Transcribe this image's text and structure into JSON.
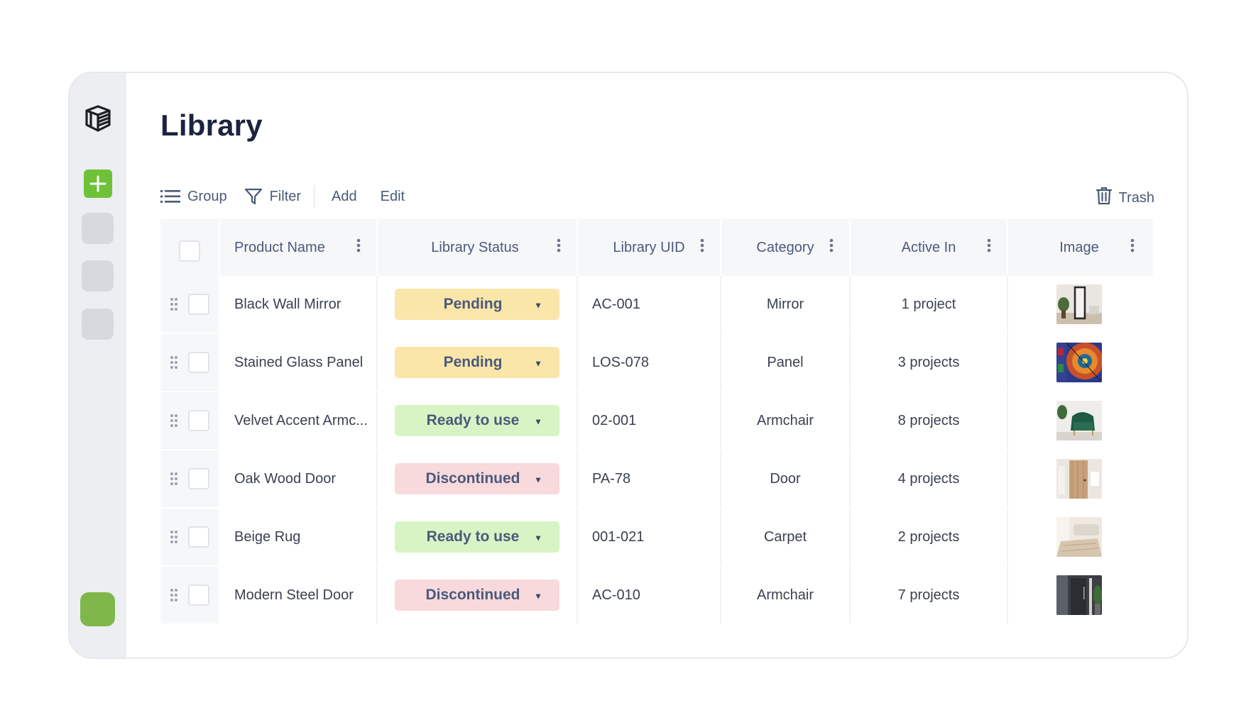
{
  "page": {
    "title": "Library"
  },
  "sidebar": {
    "logo_icon": "stacked-cube-icon",
    "add_icon": "plus-icon",
    "accent": "#6fc237",
    "avatar_color": "#7fb74a"
  },
  "toolbar": {
    "group_label": "Group",
    "filter_label": "Filter",
    "add_label": "Add",
    "edit_label": "Edit",
    "trash_label": "Trash"
  },
  "table": {
    "columns": [
      "Product Name",
      "Library Status",
      "Library UID",
      "Category",
      "Active In",
      "Image"
    ],
    "status_colors": {
      "Pending": "#fbe6a9",
      "Ready to use": "#d7f5c4",
      "Discontinued": "#f8d9dc"
    },
    "rows": [
      {
        "name": "Black Wall Mirror",
        "status": "Pending",
        "uid": "AC-001",
        "category": "Mirror",
        "active_in": "1 project",
        "image": "mirror-thumbnail"
      },
      {
        "name": "Stained Glass Panel",
        "status": "Pending",
        "uid": "LOS-078",
        "category": "Panel",
        "active_in": "3 projects",
        "image": "stained-glass-thumbnail"
      },
      {
        "name": "Velvet Accent Armc...",
        "status": "Ready to use",
        "uid": "02-001",
        "category": "Armchair",
        "active_in": "8 projects",
        "image": "armchair-thumbnail"
      },
      {
        "name": "Oak Wood Door",
        "status": "Discontinued",
        "uid": "PA-78",
        "category": "Door",
        "active_in": "4 projects",
        "image": "wood-door-thumbnail"
      },
      {
        "name": "Beige Rug",
        "status": "Ready to use",
        "uid": "001-021",
        "category": "Carpet",
        "active_in": "2 projects",
        "image": "rug-thumbnail"
      },
      {
        "name": "Modern Steel Door",
        "status": "Discontinued",
        "uid": "AC-010",
        "category": "Armchair",
        "active_in": "7 projects",
        "image": "steel-door-thumbnail"
      }
    ]
  }
}
